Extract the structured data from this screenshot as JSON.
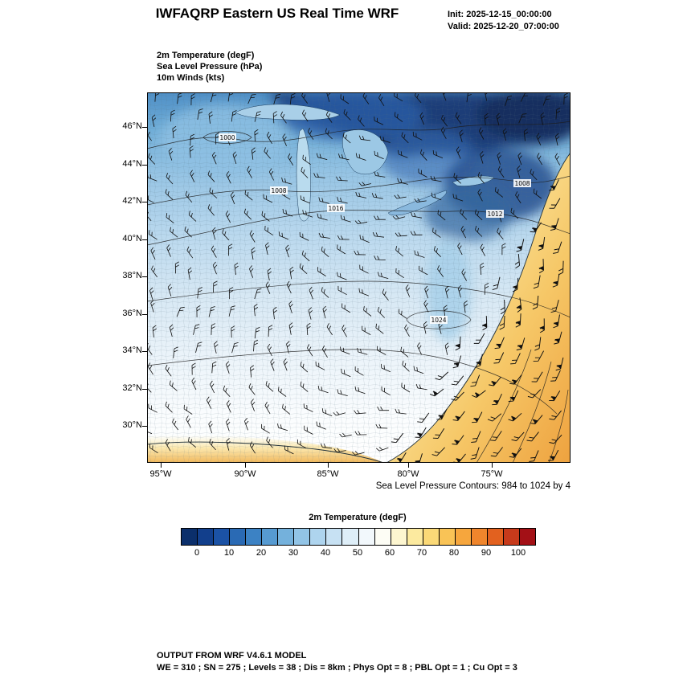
{
  "header": {
    "title": "IWFAQRP Eastern US Real Time WRF",
    "init": "Init: 2025-12-15_00:00:00",
    "valid": "Valid: 2025-12-20_07:00:00"
  },
  "fields": [
    "2m Temperature  (degF)",
    "Sea Level Pressure   (hPa)",
    "10m Winds  (kts)"
  ],
  "map": {
    "lat_ticks": [
      "46°N",
      "44°N",
      "42°N",
      "40°N",
      "38°N",
      "36°N",
      "34°N",
      "32°N",
      "30°N"
    ],
    "lon_ticks": [
      "95°W",
      "90°W",
      "85°W",
      "80°W",
      "75°W"
    ],
    "contour_labels": [
      "1000",
      "1008",
      "1016",
      "1012",
      "1008",
      "1024"
    ]
  },
  "notes": {
    "slp_contours": "Sea Level Pressure Contours: 984 to 1024 by 4"
  },
  "colorbar": {
    "title": "2m Temperature  (degF)",
    "tick_labels": [
      "0",
      "10",
      "20",
      "30",
      "40",
      "50",
      "60",
      "70",
      "80",
      "90",
      "100"
    ],
    "colors": [
      "#0b2f6b",
      "#123f8c",
      "#1b52a5",
      "#2a6ab4",
      "#3c82c4",
      "#569ad1",
      "#74b1dc",
      "#92c4e6",
      "#aed4ee",
      "#c7e1f3",
      "#deeef8",
      "#f2f8fc",
      "#fdfdf5",
      "#fdf6d0",
      "#fcea9f",
      "#fbd977",
      "#f9c356",
      "#f6a63d",
      "#ef852c",
      "#e2611f",
      "#c73a1b",
      "#a31016"
    ]
  },
  "footer": {
    "line1": "OUTPUT FROM WRF V4.6.1 MODEL",
    "line2": "WE = 310 ; SN = 275 ; Levels = 38 ; Dis = 8km ; Phys Opt = 8 ; PBL Opt = 1 ; Cu Opt = 3"
  },
  "chart_data": {
    "type": "heatmap",
    "title": "IWFAQRP Eastern US Real Time WRF",
    "init": "2025-12-15_00:00:00",
    "valid": "2025-12-20_07:00:00",
    "fields": [
      "2m Temperature (degF)",
      "Sea Level Pressure (hPa)",
      "10m Winds (kts)"
    ],
    "x_ticks_degW": [
      95,
      90,
      85,
      80,
      75
    ],
    "y_ticks_degN": [
      46,
      44,
      42,
      40,
      38,
      36,
      34,
      32,
      30
    ],
    "colorbar": {
      "label": "2m Temperature (degF)",
      "ticks": [
        0,
        10,
        20,
        30,
        40,
        50,
        60,
        70,
        80,
        90,
        100
      ]
    },
    "slp_contours": {
      "min": 984,
      "max": 1024,
      "interval": 4,
      "labeled_values": [
        1000,
        1008,
        1012,
        1016,
        1024
      ]
    },
    "summary": "Cold air (0-30 degF, blue) over Great Lakes and Northeast; mild 30-50 degF over mid-South; warm 55-75 degF (yellow-orange) over Gulf of Mexico coast and western Atlantic; dense wind barbs over ocean; 1024 hPa high near southeast coast"
  }
}
